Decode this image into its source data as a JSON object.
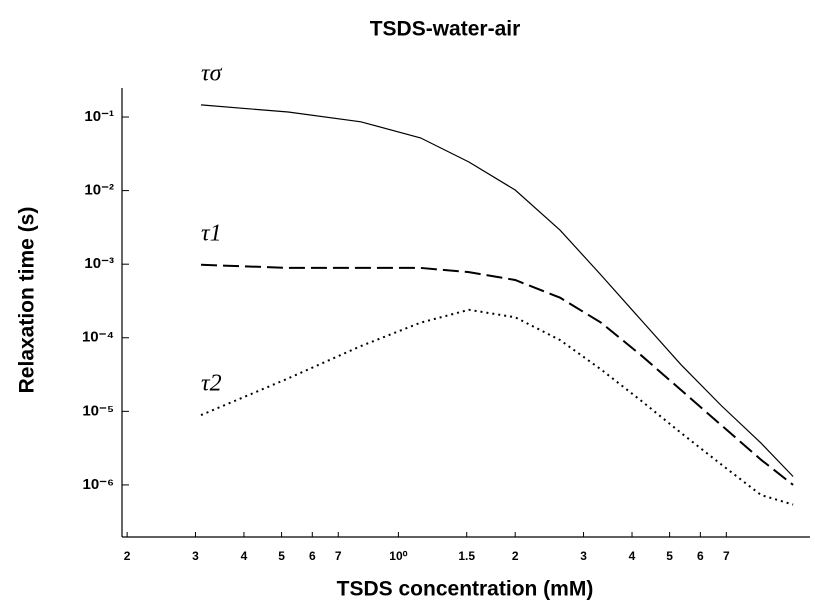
{
  "chart_data": {
    "type": "line",
    "title": "TSDS-water-air",
    "x_label": "TSDS concentration (mM)",
    "y_label": "Relaxation time (s)",
    "x_scale": "log",
    "y_scale": "log",
    "xlim": [
      0.194,
      11.5
    ],
    "ylim": [
      1.96e-07,
      0.248
    ],
    "xticks": [
      {
        "value": 0.2,
        "label": "2"
      },
      {
        "value": 0.3,
        "label": "3"
      },
      {
        "value": 0.4,
        "label": "4"
      },
      {
        "value": 0.5,
        "label": "5"
      },
      {
        "value": 0.6,
        "label": "6"
      },
      {
        "value": 0.7,
        "label": "7"
      },
      {
        "value": 1,
        "label": "10⁰"
      },
      1.5,
      2,
      3,
      4,
      5,
      6,
      7
    ],
    "yticks": [
      {
        "value": 1e-06,
        "label": "10⁻⁶"
      },
      {
        "value": 1e-05,
        "label": "10⁻⁵"
      },
      {
        "value": 0.0001,
        "label": "10⁻⁴"
      },
      {
        "value": 0.001,
        "label": "10⁻³"
      },
      {
        "value": 0.01,
        "label": "10⁻²"
      },
      {
        "value": 0.1,
        "label": "10⁻¹"
      }
    ],
    "x": [
      0.31,
      0.52,
      0.8,
      1.14,
      1.52,
      2.0,
      2.61,
      3.33,
      4.22,
      5.35,
      6.79,
      8.6,
      10.4
    ],
    "series": [
      {
        "name": "τσ",
        "color": "#000000",
        "dash": "solid",
        "values": [
          0.146,
          0.117,
          0.086,
          0.052,
          0.0245,
          0.0102,
          0.0029,
          0.00071,
          0.000175,
          4.3e-05,
          1.2e-05,
          3.7e-06,
          1.3e-06
        ]
      },
      {
        "name": "τ1",
        "color": "#000000",
        "dash": "dashed",
        "values": [
          0.00098,
          0.00089,
          0.00089,
          0.00089,
          0.00078,
          0.00061,
          0.00035,
          0.00016,
          5.8e-05,
          1.95e-05,
          6.5e-06,
          2.2e-06,
          1e-06
        ]
      },
      {
        "name": "τ2",
        "color": "#000000",
        "dash": "dotted",
        "values": [
          8.9e-06,
          2.8e-05,
          7.7e-05,
          0.00016,
          0.00024,
          0.00019,
          9.3e-05,
          3.7e-05,
          1.4e-05,
          5.1e-06,
          1.9e-06,
          7.3e-07,
          5.4e-07
        ]
      }
    ]
  }
}
